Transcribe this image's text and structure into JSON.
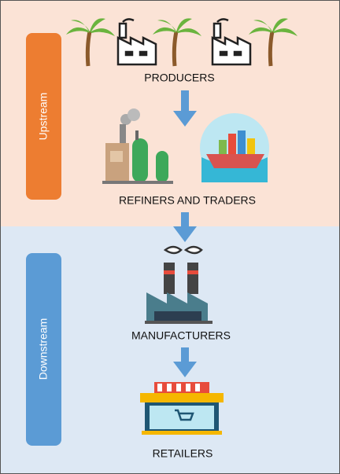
{
  "sections": [
    {
      "label": "Upstream",
      "stages": [
        "PRODUCERS",
        "REFINERS AND TRADERS"
      ]
    },
    {
      "label": "Downstream",
      "stages": [
        "MANUFACTURERS",
        "RETAILERS"
      ]
    }
  ]
}
